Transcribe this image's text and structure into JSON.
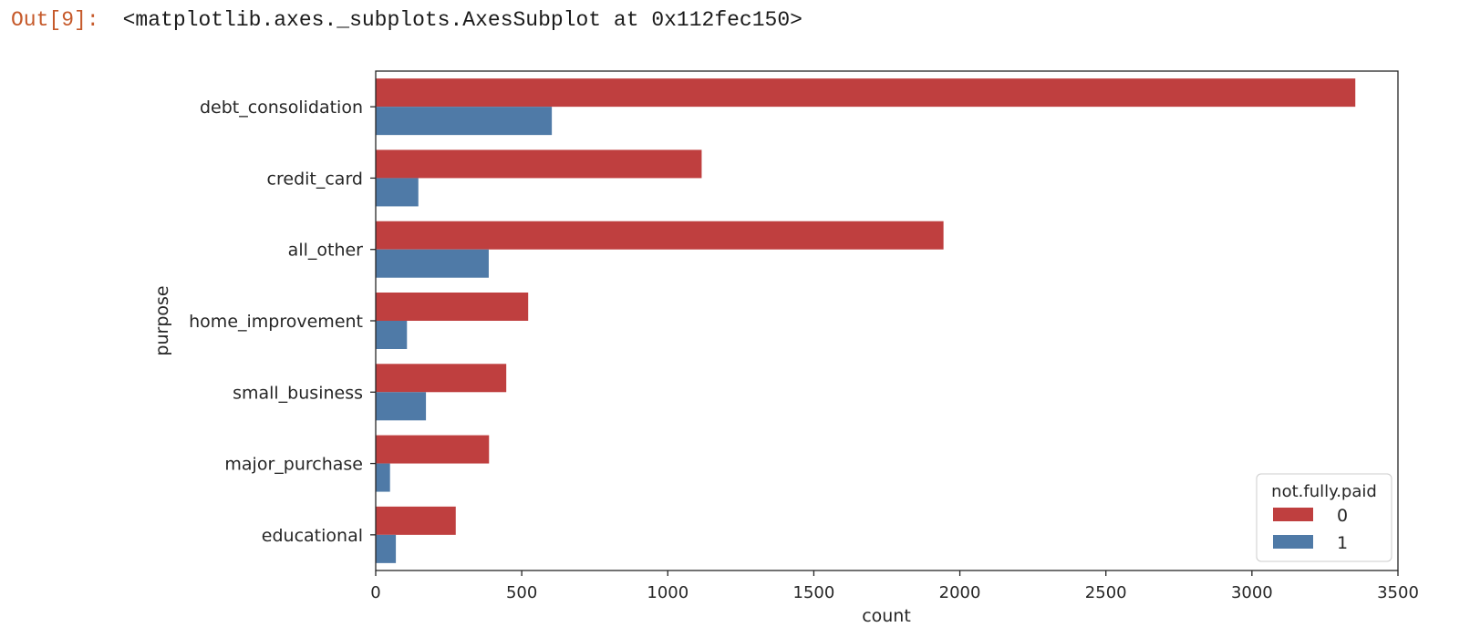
{
  "output_cell": {
    "prompt": "Out[9]:",
    "text": "<matplotlib.axes._subplots.AxesSubplot at 0x112fec150>"
  },
  "chart_data": {
    "type": "bar",
    "orientation": "horizontal",
    "categories": [
      "debt_consolidation",
      "credit_card",
      "all_other",
      "home_improvement",
      "small_business",
      "major_purchase",
      "educational"
    ],
    "series": [
      {
        "name": "0",
        "color": "#bf3f3f",
        "values": [
          3354,
          1116,
          1944,
          522,
          447,
          388,
          274
        ]
      },
      {
        "name": "1",
        "color": "#4f7aa7",
        "values": [
          603,
          146,
          387,
          107,
          172,
          49,
          69
        ]
      }
    ],
    "xlabel": "count",
    "ylabel": "purpose",
    "xlim": [
      0,
      3500
    ],
    "xticks": [
      0,
      500,
      1000,
      1500,
      2000,
      2500,
      3000,
      3500
    ],
    "legend": {
      "title": "not.fully.paid",
      "placement": "lower right"
    },
    "grid": false
  }
}
